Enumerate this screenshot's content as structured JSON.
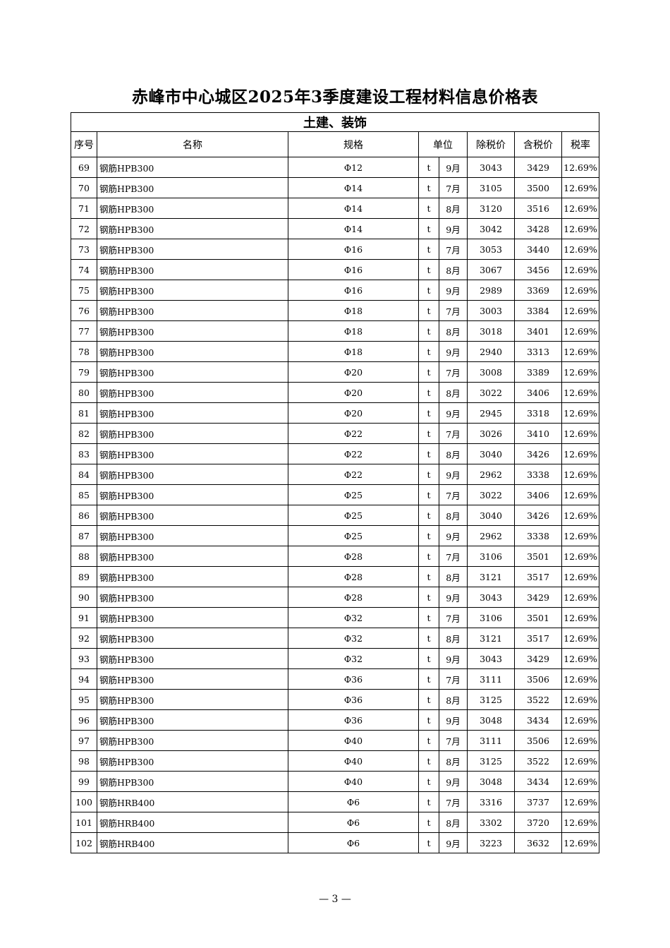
{
  "title": "赤峰市中心城区2025年3季度建设工程材料信息价格表",
  "section": "土建、装饰",
  "headers": {
    "no": "序号",
    "name": "名称",
    "spec": "规格",
    "unit": "单位",
    "price_ex_tax": "除税价",
    "price_in_tax": "含税价",
    "tax_rate": "税率"
  },
  "rows": [
    [
      "69",
      "钢筋HPB300",
      "Φ12",
      "t",
      "9月",
      "3043",
      "3429",
      "12.69%"
    ],
    [
      "70",
      "钢筋HPB300",
      "Φ14",
      "t",
      "7月",
      "3105",
      "3500",
      "12.69%"
    ],
    [
      "71",
      "钢筋HPB300",
      "Φ14",
      "t",
      "8月",
      "3120",
      "3516",
      "12.69%"
    ],
    [
      "72",
      "钢筋HPB300",
      "Φ14",
      "t",
      "9月",
      "3042",
      "3428",
      "12.69%"
    ],
    [
      "73",
      "钢筋HPB300",
      "Φ16",
      "t",
      "7月",
      "3053",
      "3440",
      "12.69%"
    ],
    [
      "74",
      "钢筋HPB300",
      "Φ16",
      "t",
      "8月",
      "3067",
      "3456",
      "12.69%"
    ],
    [
      "75",
      "钢筋HPB300",
      "Φ16",
      "t",
      "9月",
      "2989",
      "3369",
      "12.69%"
    ],
    [
      "76",
      "钢筋HPB300",
      "Φ18",
      "t",
      "7月",
      "3003",
      "3384",
      "12.69%"
    ],
    [
      "77",
      "钢筋HPB300",
      "Φ18",
      "t",
      "8月",
      "3018",
      "3401",
      "12.69%"
    ],
    [
      "78",
      "钢筋HPB300",
      "Φ18",
      "t",
      "9月",
      "2940",
      "3313",
      "12.69%"
    ],
    [
      "79",
      "钢筋HPB300",
      "Φ20",
      "t",
      "7月",
      "3008",
      "3389",
      "12.69%"
    ],
    [
      "80",
      "钢筋HPB300",
      "Φ20",
      "t",
      "8月",
      "3022",
      "3406",
      "12.69%"
    ],
    [
      "81",
      "钢筋HPB300",
      "Φ20",
      "t",
      "9月",
      "2945",
      "3318",
      "12.69%"
    ],
    [
      "82",
      "钢筋HPB300",
      "Φ22",
      "t",
      "7月",
      "3026",
      "3410",
      "12.69%"
    ],
    [
      "83",
      "钢筋HPB300",
      "Φ22",
      "t",
      "8月",
      "3040",
      "3426",
      "12.69%"
    ],
    [
      "84",
      "钢筋HPB300",
      "Φ22",
      "t",
      "9月",
      "2962",
      "3338",
      "12.69%"
    ],
    [
      "85",
      "钢筋HPB300",
      "Φ25",
      "t",
      "7月",
      "3022",
      "3406",
      "12.69%"
    ],
    [
      "86",
      "钢筋HPB300",
      "Φ25",
      "t",
      "8月",
      "3040",
      "3426",
      "12.69%"
    ],
    [
      "87",
      "钢筋HPB300",
      "Φ25",
      "t",
      "9月",
      "2962",
      "3338",
      "12.69%"
    ],
    [
      "88",
      "钢筋HPB300",
      "Φ28",
      "t",
      "7月",
      "3106",
      "3501",
      "12.69%"
    ],
    [
      "89",
      "钢筋HPB300",
      "Φ28",
      "t",
      "8月",
      "3121",
      "3517",
      "12.69%"
    ],
    [
      "90",
      "钢筋HPB300",
      "Φ28",
      "t",
      "9月",
      "3043",
      "3429",
      "12.69%"
    ],
    [
      "91",
      "钢筋HPB300",
      "Φ32",
      "t",
      "7月",
      "3106",
      "3501",
      "12.69%"
    ],
    [
      "92",
      "钢筋HPB300",
      "Φ32",
      "t",
      "8月",
      "3121",
      "3517",
      "12.69%"
    ],
    [
      "93",
      "钢筋HPB300",
      "Φ32",
      "t",
      "9月",
      "3043",
      "3429",
      "12.69%"
    ],
    [
      "94",
      "钢筋HPB300",
      "Φ36",
      "t",
      "7月",
      "3111",
      "3506",
      "12.69%"
    ],
    [
      "95",
      "钢筋HPB300",
      "Φ36",
      "t",
      "8月",
      "3125",
      "3522",
      "12.69%"
    ],
    [
      "96",
      "钢筋HPB300",
      "Φ36",
      "t",
      "9月",
      "3048",
      "3434",
      "12.69%"
    ],
    [
      "97",
      "钢筋HPB300",
      "Φ40",
      "t",
      "7月",
      "3111",
      "3506",
      "12.69%"
    ],
    [
      "98",
      "钢筋HPB300",
      "Φ40",
      "t",
      "8月",
      "3125",
      "3522",
      "12.69%"
    ],
    [
      "99",
      "钢筋HPB300",
      "Φ40",
      "t",
      "9月",
      "3048",
      "3434",
      "12.69%"
    ],
    [
      "100",
      "钢筋HRB400",
      "Φ6",
      "t",
      "7月",
      "3316",
      "3737",
      "12.69%"
    ],
    [
      "101",
      "钢筋HRB400",
      "Φ6",
      "t",
      "8月",
      "3302",
      "3720",
      "12.69%"
    ],
    [
      "102",
      "钢筋HRB400",
      "Φ6",
      "t",
      "9月",
      "3223",
      "3632",
      "12.69%"
    ]
  ],
  "footer": "— 3 —"
}
